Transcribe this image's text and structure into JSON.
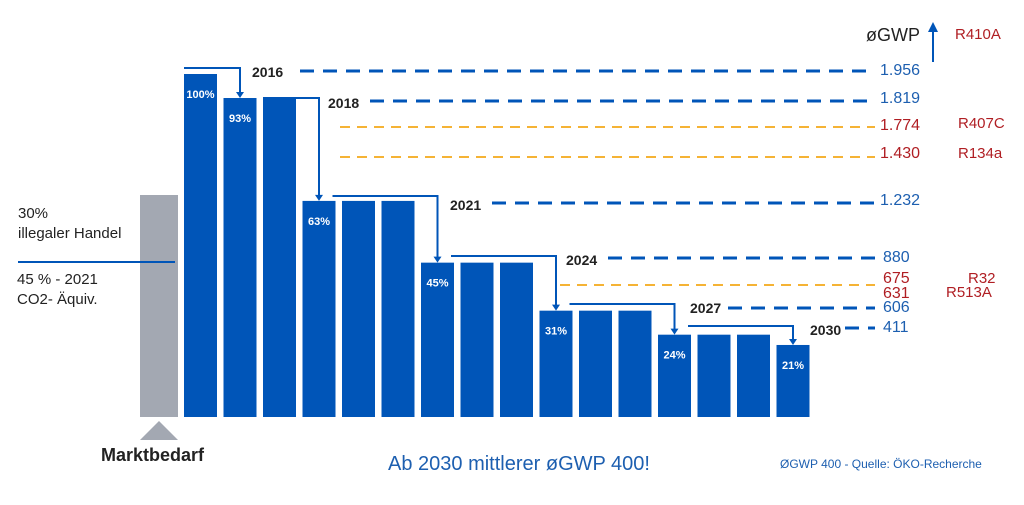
{
  "chart_data": {
    "type": "bar",
    "values": [
      100,
      93,
      93,
      63,
      63,
      63,
      45,
      45,
      45,
      31,
      31,
      31,
      24,
      24,
      24,
      21
    ],
    "data_labels": [
      "100%",
      "93%",
      "",
      "63%",
      "",
      "",
      "45%",
      "",
      "",
      "31%",
      "",
      "",
      "24%",
      "",
      "",
      "21%"
    ],
    "ylim": [
      0,
      100
    ],
    "grid": false,
    "bar_color": "#0055b8",
    "market_bar_color": "#a3a8b2",
    "steps": [
      {
        "year": "2016",
        "gwp": "1.956"
      },
      {
        "year": "2018",
        "gwp": "1.819"
      },
      {
        "year": "2021",
        "gwp": "1.232"
      },
      {
        "year": "2024",
        "gwp": "880"
      },
      {
        "year": "2027",
        "gwp": "606"
      },
      {
        "year": "2030",
        "gwp": "411"
      }
    ],
    "refrigerants": [
      {
        "name": "R410A",
        "gwp": ""
      },
      {
        "name": "R407C",
        "gwp": "1.774"
      },
      {
        "name": "R134a",
        "gwp": "1.430"
      },
      {
        "name": "R32",
        "gwp": "675"
      },
      {
        "name": "R513A",
        "gwp": "631"
      }
    ],
    "axis_label": "øGWP"
  },
  "left": {
    "line1": "30%",
    "line2": "illegaler Handel",
    "line3": "45 % - 2021",
    "line4": "CO2- Äquiv.",
    "market": "Marktbedarf"
  },
  "footer": {
    "headline": "Ab 2030 mittlerer øGWP 400!",
    "source": "ØGWP 400 - Quelle: ÖKO-Recherche"
  },
  "colors": {
    "blue": "#0055b8",
    "orange": "#f5b335",
    "red": "#b01e23"
  }
}
